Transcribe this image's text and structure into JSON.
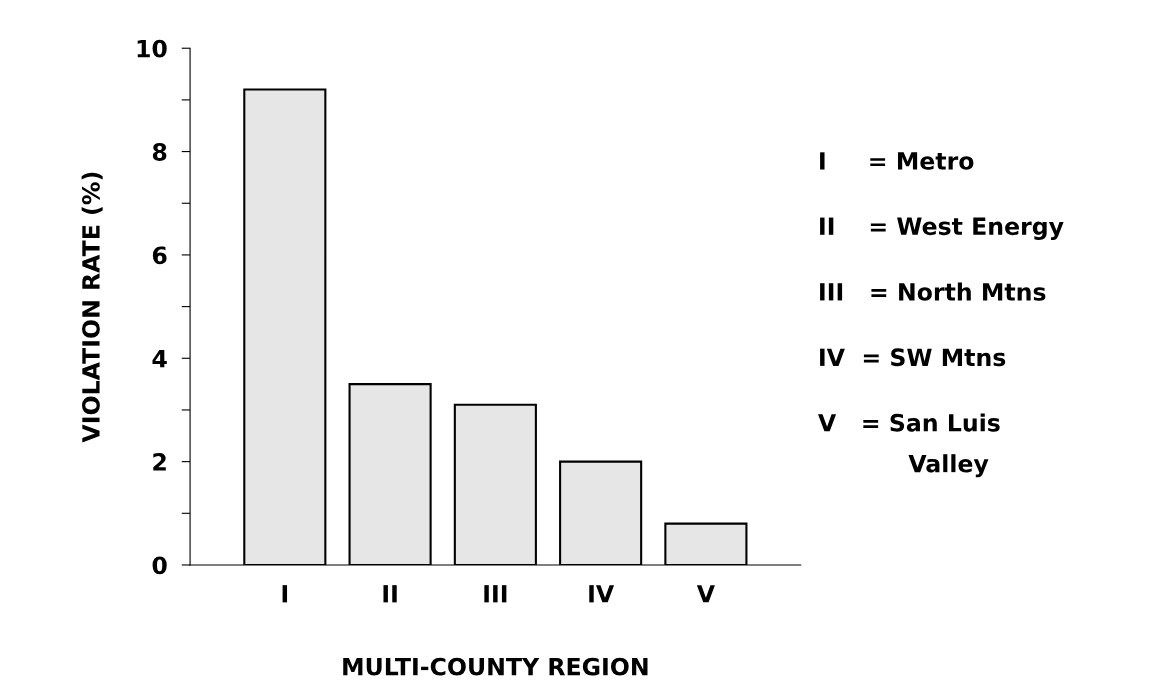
{
  "chart_data": {
    "type": "bar",
    "xlabel": "MULTI-COUNTY REGION",
    "ylabel": "VIOLATION RATE (%)",
    "categories": [
      "I",
      "II",
      "III",
      "IV",
      "V"
    ],
    "values": [
      9.2,
      3.5,
      3.1,
      2.0,
      0.8
    ],
    "color": "#e6e6e6",
    "ylim": [
      0,
      10
    ],
    "yticks": [
      0,
      {
        "value": 1,
        "label": null
      },
      2,
      {
        "value": 3,
        "label": null
      },
      4,
      {
        "value": 5,
        "label": null
      },
      6,
      {
        "value": 7,
        "label": null
      },
      8,
      {
        "value": 9,
        "label": null
      },
      10
    ],
    "grid": false,
    "legend": false,
    "annotations": [
      "I     = Metro",
      "II    = West Energy",
      "III   = North Mtns",
      "IV  = SW Mtns",
      "V   = San Luis\n           Valley"
    ]
  }
}
